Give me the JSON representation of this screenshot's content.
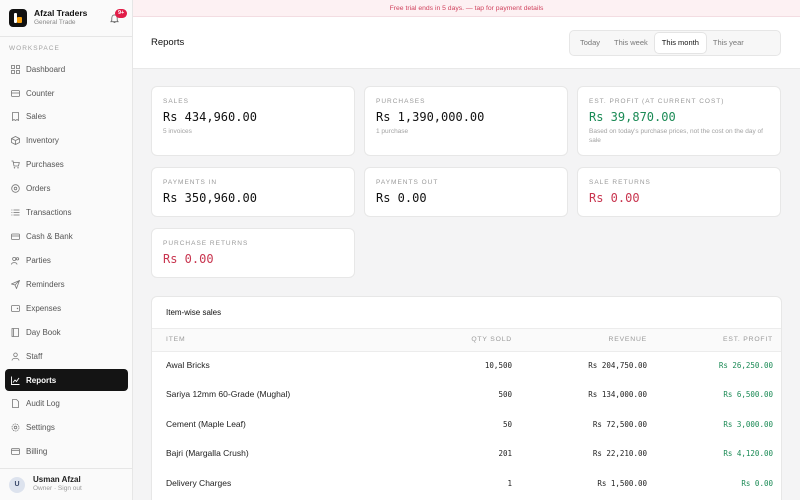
{
  "brand": {
    "name": "Afzal Traders",
    "subtitle": "General Trade",
    "notifications": "9+"
  },
  "sidebar": {
    "section_label": "WORKSPACE",
    "items": [
      {
        "label": "Dashboard",
        "icon": "grid-icon"
      },
      {
        "label": "Counter",
        "icon": "counter-icon"
      },
      {
        "label": "Sales",
        "icon": "receipt-icon"
      },
      {
        "label": "Inventory",
        "icon": "box-icon"
      },
      {
        "label": "Purchases",
        "icon": "cart-icon"
      },
      {
        "label": "Orders",
        "icon": "orders-icon"
      },
      {
        "label": "Transactions",
        "icon": "list-icon"
      },
      {
        "label": "Cash & Bank",
        "icon": "bank-icon"
      },
      {
        "label": "Parties",
        "icon": "users-icon"
      },
      {
        "label": "Reminders",
        "icon": "send-icon"
      },
      {
        "label": "Expenses",
        "icon": "wallet-icon"
      },
      {
        "label": "Day Book",
        "icon": "book-icon"
      },
      {
        "label": "Staff",
        "icon": "staff-icon"
      },
      {
        "label": "Reports",
        "icon": "chart-icon",
        "active": true
      },
      {
        "label": "Audit Log",
        "icon": "file-icon"
      },
      {
        "label": "Settings",
        "icon": "gear-icon"
      },
      {
        "label": "Billing",
        "icon": "card-icon"
      }
    ]
  },
  "user": {
    "initial": "U",
    "name": "Usman Afzal",
    "role": "Owner · Sign out"
  },
  "banner": {
    "text": "Free trial ends in 5 days. — tap for payment details"
  },
  "header": {
    "title": "Reports",
    "ranges": [
      "Today",
      "This week",
      "This month",
      "This year"
    ],
    "active_range": "This month"
  },
  "cards": {
    "sales": {
      "label": "SALES",
      "value": "Rs 434,960.00",
      "sub": "5 invoices"
    },
    "purchases": {
      "label": "PURCHASES",
      "value": "Rs 1,390,000.00",
      "sub": "1 purchase"
    },
    "profit": {
      "label": "EST. PROFIT (AT CURRENT COST)",
      "value": "Rs 39,870.00",
      "sub": "Based on today's purchase prices, not the cost on the day of sale"
    },
    "payments_in": {
      "label": "PAYMENTS IN",
      "value": "Rs 350,960.00"
    },
    "payments_out": {
      "label": "PAYMENTS OUT",
      "value": "Rs 0.00"
    },
    "sale_returns": {
      "label": "SALE RETURNS",
      "value": "Rs 0.00"
    },
    "purchase_returns": {
      "label": "PURCHASE RETURNS",
      "value": "Rs 0.00"
    }
  },
  "colors": {
    "accent_green": "#1a8a55",
    "accent_red": "#c8354f",
    "active_nav": "#141414"
  },
  "table": {
    "title": "Item-wise sales",
    "headers": [
      "ITEM",
      "QTY SOLD",
      "REVENUE",
      "EST. PROFIT"
    ],
    "rows": [
      {
        "item": "Awal Bricks",
        "qty": "10,500",
        "revenue": "Rs 204,750.00",
        "profit": "Rs 26,250.00"
      },
      {
        "item": "Sariya 12mm 60-Grade (Mughal)",
        "qty": "500",
        "revenue": "Rs 134,000.00",
        "profit": "Rs 6,500.00"
      },
      {
        "item": "Cement (Maple Leaf)",
        "qty": "50",
        "revenue": "Rs 72,500.00",
        "profit": "Rs 3,000.00"
      },
      {
        "item": "Bajri (Margalla Crush)",
        "qty": "201",
        "revenue": "Rs 22,210.00",
        "profit": "Rs 4,120.00"
      },
      {
        "item": "Delivery Charges",
        "qty": "1",
        "revenue": "Rs 1,500.00",
        "profit": "Rs 0.00"
      }
    ]
  }
}
